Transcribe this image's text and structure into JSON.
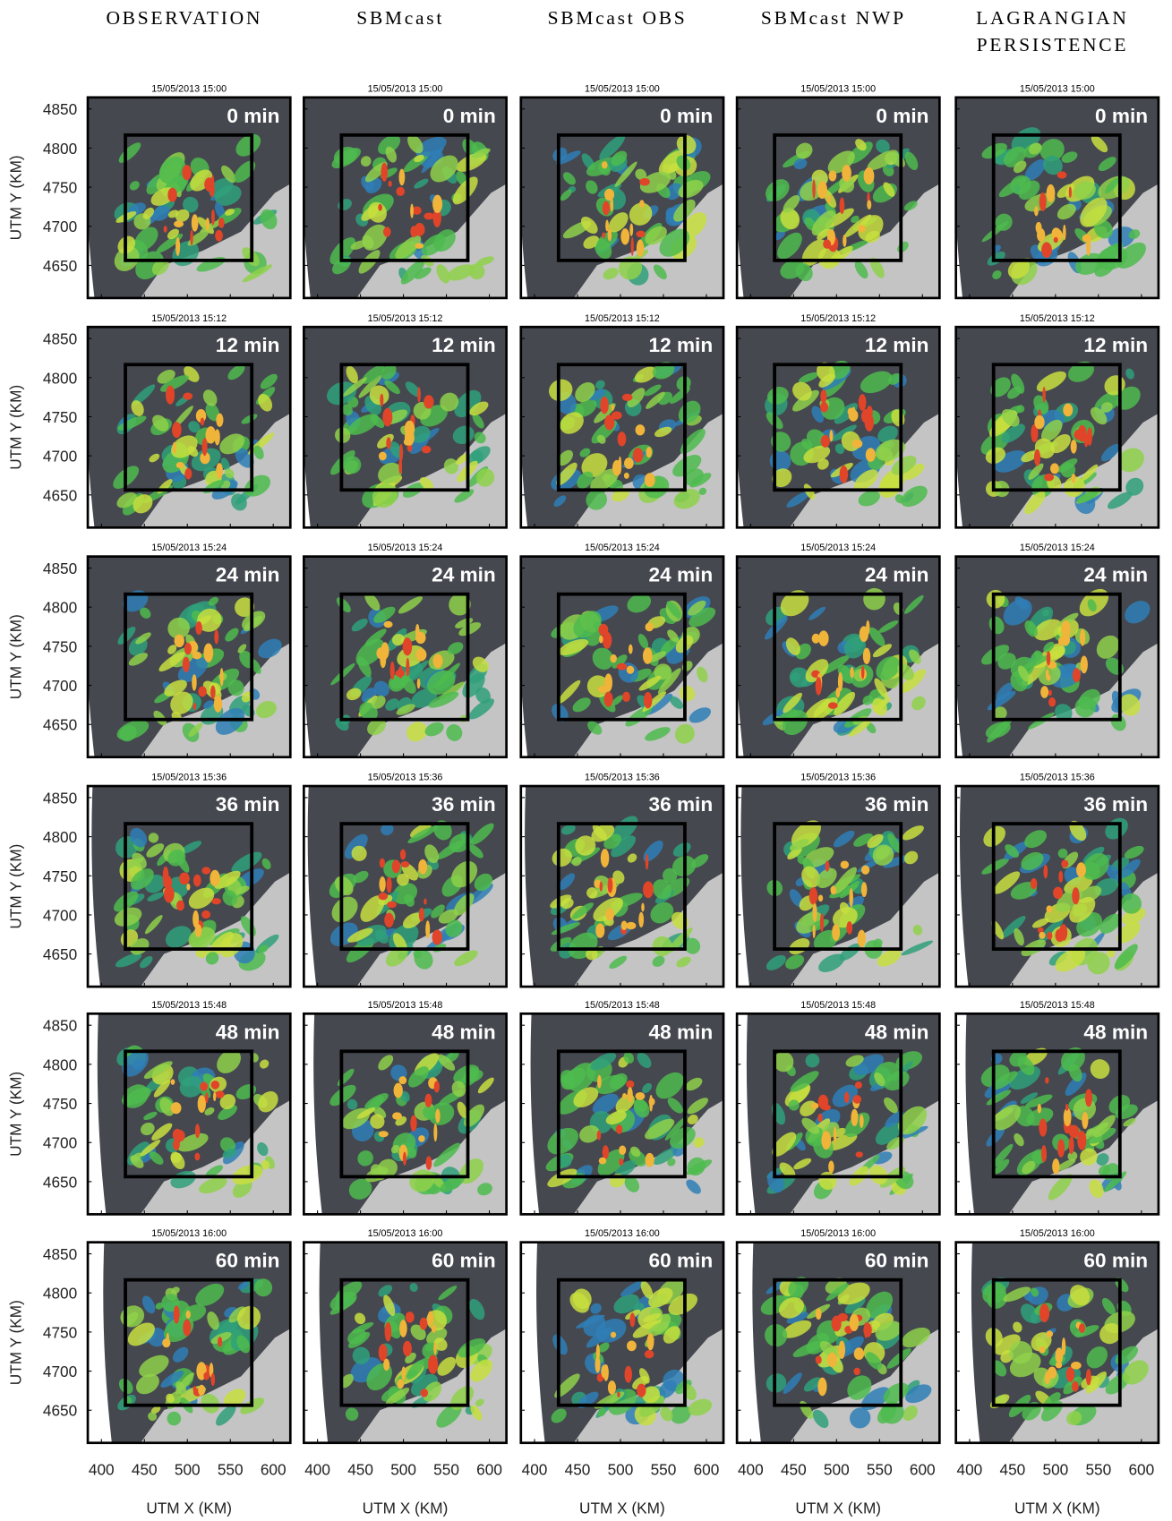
{
  "figure": {
    "columns": [
      [
        "OBSERVATION"
      ],
      [
        "SBMcast"
      ],
      [
        "SBMcast OBS"
      ],
      [
        "SBMcast NWP"
      ],
      [
        "LAGRANGIAN",
        "PERSISTENCE"
      ]
    ],
    "rows": [
      {
        "time": "15/05/2013 15:00",
        "lead": "0 min"
      },
      {
        "time": "15/05/2013 15:12",
        "lead": "12 min"
      },
      {
        "time": "15/05/2013 15:24",
        "lead": "24 min"
      },
      {
        "time": "15/05/2013 15:36",
        "lead": "36 min"
      },
      {
        "time": "15/05/2013 15:48",
        "lead": "48 min"
      },
      {
        "time": "15/05/2013 16:00",
        "lead": "60 min"
      }
    ],
    "xlabel": "UTM X (KM)",
    "ylabel": "UTM Y (KM)",
    "xlim": [
      383,
      621
    ],
    "ylim": [
      4607,
      4866
    ],
    "xticks": [
      400,
      450,
      500,
      550,
      600
    ],
    "yticks": [
      4650,
      4700,
      4750,
      4800,
      4850
    ]
  }
}
